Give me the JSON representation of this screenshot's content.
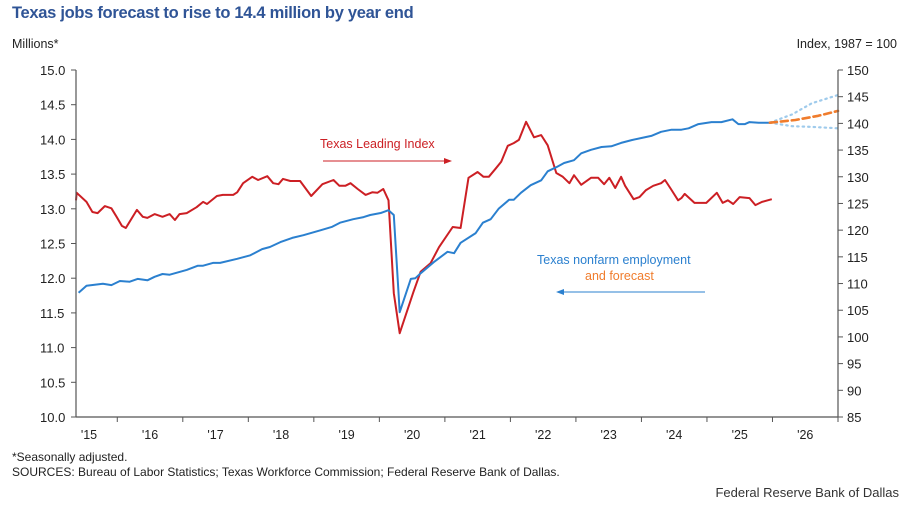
{
  "header": {
    "title": "Texas jobs forecast to rise to 14.4 million by year end",
    "left_axis_label": "Millions*",
    "right_axis_label": "Index, 1987 = 100"
  },
  "footer": {
    "note": "*Seasonally adjusted.",
    "sources": "SOURCES: Bureau of Labor Statistics; Texas Workforce Commission; Federal Reserve Bank of Dallas.",
    "credit": "Federal Reserve Bank of Dallas"
  },
  "colors": {
    "title": "#2f5496",
    "employment": "#2b80cf",
    "leading_index": "#cc1f24",
    "forecast": "#f07c2c",
    "forecast_band": "#9fcbec"
  },
  "chart_data": {
    "type": "line",
    "title": "Texas jobs forecast to rise to 14.4 million by year end",
    "xlabel": "",
    "xlim": [
      2015.37,
      2027.0
    ],
    "x_ticks": [
      "'15",
      "'16",
      "'17",
      "'18",
      "'19",
      "'20",
      "'21",
      "'22",
      "'23",
      "'24",
      "'25",
      "'26"
    ],
    "y_left": {
      "label": "Millions*",
      "range": [
        10.0,
        15.0
      ],
      "ticks": [
        "10.0",
        "10.5",
        "11.0",
        "11.5",
        "12.0",
        "12.5",
        "13.0",
        "13.5",
        "14.0",
        "14.5",
        "15.0"
      ]
    },
    "y_right": {
      "label": "Index, 1987 = 100",
      "range": [
        85,
        150
      ],
      "ticks": [
        "85",
        "90",
        "95",
        "100",
        "105",
        "110",
        "115",
        "120",
        "125",
        "130",
        "135",
        "140",
        "145",
        "150"
      ]
    },
    "grid": false,
    "annotations": {
      "leading_index": "Texas Leading Index",
      "employment_line1": "Texas nonfarm employment",
      "employment_line2": "and forecast"
    },
    "series": [
      {
        "name": "Texas nonfarm employment",
        "axis": "left",
        "points": [
          [
            2015.41,
            11.79
          ],
          [
            2015.53,
            11.89
          ],
          [
            2015.78,
            11.92
          ],
          [
            2015.91,
            11.9
          ],
          [
            2016.04,
            11.96
          ],
          [
            2016.19,
            11.95
          ],
          [
            2016.31,
            11.99
          ],
          [
            2016.46,
            11.97
          ],
          [
            2016.57,
            12.02
          ],
          [
            2016.69,
            12.06
          ],
          [
            2016.8,
            12.05
          ],
          [
            2017.06,
            12.12
          ],
          [
            2017.23,
            12.18
          ],
          [
            2017.31,
            12.18
          ],
          [
            2017.46,
            12.22
          ],
          [
            2017.57,
            12.22
          ],
          [
            2017.83,
            12.28
          ],
          [
            2018.03,
            12.33
          ],
          [
            2018.21,
            12.42
          ],
          [
            2018.33,
            12.45
          ],
          [
            2018.49,
            12.52
          ],
          [
            2018.67,
            12.58
          ],
          [
            2018.84,
            12.62
          ],
          [
            2019.1,
            12.69
          ],
          [
            2019.28,
            12.74
          ],
          [
            2019.4,
            12.8
          ],
          [
            2019.6,
            12.85
          ],
          [
            2019.76,
            12.88
          ],
          [
            2019.86,
            12.91
          ],
          [
            2020.02,
            12.94
          ],
          [
            2020.14,
            12.98
          ],
          [
            2020.22,
            12.91
          ],
          [
            2020.31,
            11.51
          ],
          [
            2020.48,
            11.99
          ],
          [
            2020.55,
            12.0
          ],
          [
            2020.63,
            12.07
          ],
          [
            2020.83,
            12.23
          ],
          [
            2021.04,
            12.38
          ],
          [
            2021.14,
            12.36
          ],
          [
            2021.24,
            12.51
          ],
          [
            2021.47,
            12.65
          ],
          [
            2021.58,
            12.8
          ],
          [
            2021.7,
            12.85
          ],
          [
            2021.82,
            13.0
          ],
          [
            2021.98,
            13.13
          ],
          [
            2022.05,
            13.13
          ],
          [
            2022.16,
            13.23
          ],
          [
            2022.31,
            13.34
          ],
          [
            2022.47,
            13.41
          ],
          [
            2022.57,
            13.54
          ],
          [
            2022.7,
            13.6
          ],
          [
            2022.82,
            13.66
          ],
          [
            2022.97,
            13.7
          ],
          [
            2023.08,
            13.8
          ],
          [
            2023.23,
            13.85
          ],
          [
            2023.39,
            13.89
          ],
          [
            2023.54,
            13.9
          ],
          [
            2023.69,
            13.95
          ],
          [
            2023.85,
            13.99
          ],
          [
            2024.0,
            14.02
          ],
          [
            2024.15,
            14.05
          ],
          [
            2024.3,
            14.11
          ],
          [
            2024.46,
            14.14
          ],
          [
            2024.61,
            14.14
          ],
          [
            2024.72,
            14.16
          ],
          [
            2024.87,
            14.22
          ],
          [
            2025.07,
            14.25
          ],
          [
            2025.22,
            14.25
          ],
          [
            2025.39,
            14.29
          ],
          [
            2025.48,
            14.22
          ],
          [
            2025.58,
            14.22
          ],
          [
            2025.65,
            14.25
          ],
          [
            2025.79,
            14.24
          ],
          [
            2025.96,
            14.24
          ]
        ]
      },
      {
        "name": "forecast",
        "axis": "left",
        "style": "dashed",
        "points": [
          [
            2025.96,
            14.24
          ],
          [
            2026.35,
            14.28
          ],
          [
            2026.7,
            14.34
          ],
          [
            2027.0,
            14.41
          ]
        ]
      },
      {
        "name": "forecast upper bound",
        "axis": "left",
        "style": "dotted",
        "points": [
          [
            2025.96,
            14.24
          ],
          [
            2026.3,
            14.36
          ],
          [
            2026.6,
            14.52
          ],
          [
            2027.0,
            14.64
          ]
        ]
      },
      {
        "name": "forecast lower bound",
        "axis": "left",
        "style": "dotted",
        "points": [
          [
            2025.96,
            14.24
          ],
          [
            2026.3,
            14.19
          ],
          [
            2026.6,
            14.18
          ],
          [
            2027.0,
            14.16
          ]
        ]
      },
      {
        "name": "Texas Leading Index",
        "axis": "right",
        "points": [
          [
            2015.27,
            125.6
          ],
          [
            2015.38,
            127.0
          ],
          [
            2015.53,
            125.3
          ],
          [
            2015.62,
            123.4
          ],
          [
            2015.7,
            123.2
          ],
          [
            2015.81,
            124.5
          ],
          [
            2015.91,
            124.1
          ],
          [
            2015.99,
            122.5
          ],
          [
            2016.07,
            120.8
          ],
          [
            2016.13,
            120.4
          ],
          [
            2016.3,
            123.8
          ],
          [
            2016.39,
            122.5
          ],
          [
            2016.46,
            122.3
          ],
          [
            2016.57,
            123.0
          ],
          [
            2016.69,
            122.5
          ],
          [
            2016.8,
            123.0
          ],
          [
            2016.88,
            121.9
          ],
          [
            2016.95,
            123.0
          ],
          [
            2017.06,
            123.2
          ],
          [
            2017.21,
            124.3
          ],
          [
            2017.31,
            125.3
          ],
          [
            2017.37,
            124.9
          ],
          [
            2017.52,
            126.4
          ],
          [
            2017.61,
            126.6
          ],
          [
            2017.77,
            126.6
          ],
          [
            2017.83,
            127.1
          ],
          [
            2017.92,
            128.8
          ],
          [
            2018.06,
            130.0
          ],
          [
            2018.15,
            129.4
          ],
          [
            2018.29,
            130.1
          ],
          [
            2018.38,
            128.8
          ],
          [
            2018.46,
            128.6
          ],
          [
            2018.53,
            129.6
          ],
          [
            2018.64,
            129.2
          ],
          [
            2018.79,
            129.2
          ],
          [
            2018.96,
            126.4
          ],
          [
            2019.13,
            128.6
          ],
          [
            2019.3,
            129.4
          ],
          [
            2019.39,
            128.3
          ],
          [
            2019.48,
            128.3
          ],
          [
            2019.56,
            128.8
          ],
          [
            2019.67,
            127.7
          ],
          [
            2019.79,
            126.6
          ],
          [
            2019.89,
            127.1
          ],
          [
            2019.97,
            127.0
          ],
          [
            2020.06,
            127.7
          ],
          [
            2020.14,
            125.6
          ],
          [
            2020.22,
            108.2
          ],
          [
            2020.31,
            100.7
          ],
          [
            2020.52,
            108.4
          ],
          [
            2020.63,
            112.2
          ],
          [
            2020.78,
            113.8
          ],
          [
            2020.91,
            116.8
          ],
          [
            2021.12,
            120.6
          ],
          [
            2021.24,
            120.4
          ],
          [
            2021.36,
            129.8
          ],
          [
            2021.5,
            130.9
          ],
          [
            2021.59,
            130.0
          ],
          [
            2021.67,
            130.0
          ],
          [
            2021.78,
            131.6
          ],
          [
            2021.86,
            132.8
          ],
          [
            2021.96,
            135.8
          ],
          [
            2022.05,
            136.3
          ],
          [
            2022.13,
            136.9
          ],
          [
            2022.24,
            140.3
          ],
          [
            2022.36,
            137.4
          ],
          [
            2022.47,
            137.8
          ],
          [
            2022.57,
            135.9
          ],
          [
            2022.7,
            130.7
          ],
          [
            2022.8,
            130.0
          ],
          [
            2022.9,
            128.8
          ],
          [
            2022.97,
            130.3
          ],
          [
            2023.08,
            128.5
          ],
          [
            2023.23,
            129.8
          ],
          [
            2023.34,
            129.8
          ],
          [
            2023.43,
            128.6
          ],
          [
            2023.51,
            129.8
          ],
          [
            2023.6,
            127.9
          ],
          [
            2023.69,
            130.0
          ],
          [
            2023.75,
            128.3
          ],
          [
            2023.88,
            125.8
          ],
          [
            2023.97,
            126.2
          ],
          [
            2024.07,
            127.5
          ],
          [
            2024.18,
            128.3
          ],
          [
            2024.3,
            128.8
          ],
          [
            2024.36,
            129.4
          ],
          [
            2024.45,
            127.7
          ],
          [
            2024.56,
            125.6
          ],
          [
            2024.61,
            126.0
          ],
          [
            2024.66,
            126.8
          ],
          [
            2024.81,
            125.1
          ],
          [
            2024.99,
            125.1
          ],
          [
            2025.15,
            127.0
          ],
          [
            2025.24,
            125.1
          ],
          [
            2025.32,
            125.6
          ],
          [
            2025.4,
            124.9
          ],
          [
            2025.5,
            126.2
          ],
          [
            2025.65,
            126.0
          ],
          [
            2025.74,
            124.7
          ],
          [
            2025.84,
            125.3
          ],
          [
            2025.99,
            125.8
          ]
        ]
      }
    ]
  }
}
